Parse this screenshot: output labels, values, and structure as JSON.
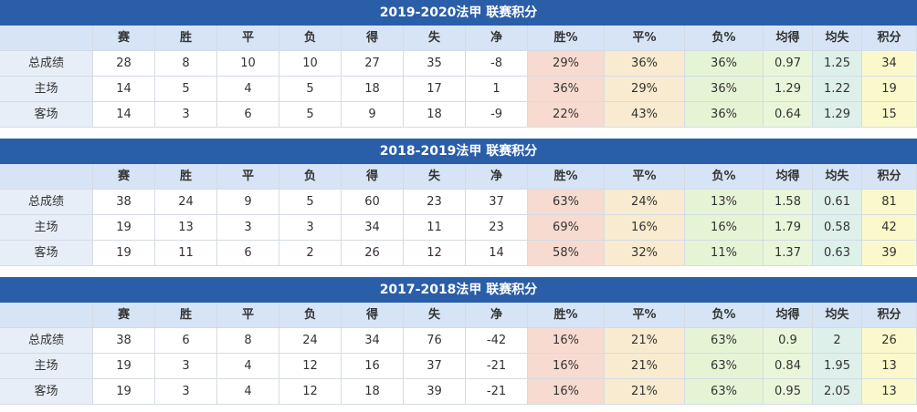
{
  "tables": [
    {
      "title": "2019-2020法甲 联赛积分",
      "headers": [
        "赛",
        "胜",
        "平",
        "负",
        "得",
        "失",
        "净",
        "胜%",
        "平%",
        "负%",
        "均得",
        "均失",
        "积分"
      ],
      "rows": [
        [
          "总成绩",
          "28",
          "8",
          "10",
          "10",
          "27",
          "35",
          "-8",
          "29%",
          "36%",
          "36%",
          "0.97",
          "1.25",
          "34"
        ],
        [
          "主场",
          "14",
          "5",
          "4",
          "5",
          "18",
          "17",
          "1",
          "36%",
          "29%",
          "36%",
          "1.29",
          "1.22",
          "19"
        ],
        [
          "客场",
          "14",
          "3",
          "6",
          "5",
          "9",
          "18",
          "-9",
          "22%",
          "43%",
          "36%",
          "0.64",
          "1.29",
          "15"
        ]
      ]
    },
    {
      "title": "2018-2019法甲 联赛积分",
      "headers": [
        "赛",
        "胜",
        "平",
        "负",
        "得",
        "失",
        "净",
        "胜%",
        "平%",
        "负%",
        "均得",
        "均失",
        "积分"
      ],
      "rows": [
        [
          "总成绩",
          "38",
          "24",
          "9",
          "5",
          "60",
          "23",
          "37",
          "63%",
          "24%",
          "13%",
          "1.58",
          "0.61",
          "81"
        ],
        [
          "主场",
          "19",
          "13",
          "3",
          "3",
          "34",
          "11",
          "23",
          "69%",
          "16%",
          "16%",
          "1.79",
          "0.58",
          "42"
        ],
        [
          "客场",
          "19",
          "11",
          "6",
          "2",
          "26",
          "12",
          "14",
          "58%",
          "32%",
          "11%",
          "1.37",
          "0.63",
          "39"
        ]
      ]
    },
    {
      "title": "2017-2018法甲 联赛积分",
      "headers": [
        "赛",
        "胜",
        "平",
        "负",
        "得",
        "失",
        "净",
        "胜%",
        "平%",
        "负%",
        "均得",
        "均失",
        "积分"
      ],
      "rows": [
        [
          "总成绩",
          "38",
          "6",
          "8",
          "24",
          "34",
          "76",
          "-42",
          "16%",
          "21%",
          "63%",
          "0.9",
          "2",
          "26"
        ],
        [
          "主场",
          "19",
          "3",
          "4",
          "12",
          "16",
          "37",
          "-21",
          "16%",
          "21%",
          "63%",
          "0.84",
          "1.95",
          "13"
        ],
        [
          "客场",
          "19",
          "3",
          "4",
          "12",
          "18",
          "39",
          "-21",
          "16%",
          "21%",
          "63%",
          "0.95",
          "2.05",
          "13"
        ]
      ]
    }
  ]
}
